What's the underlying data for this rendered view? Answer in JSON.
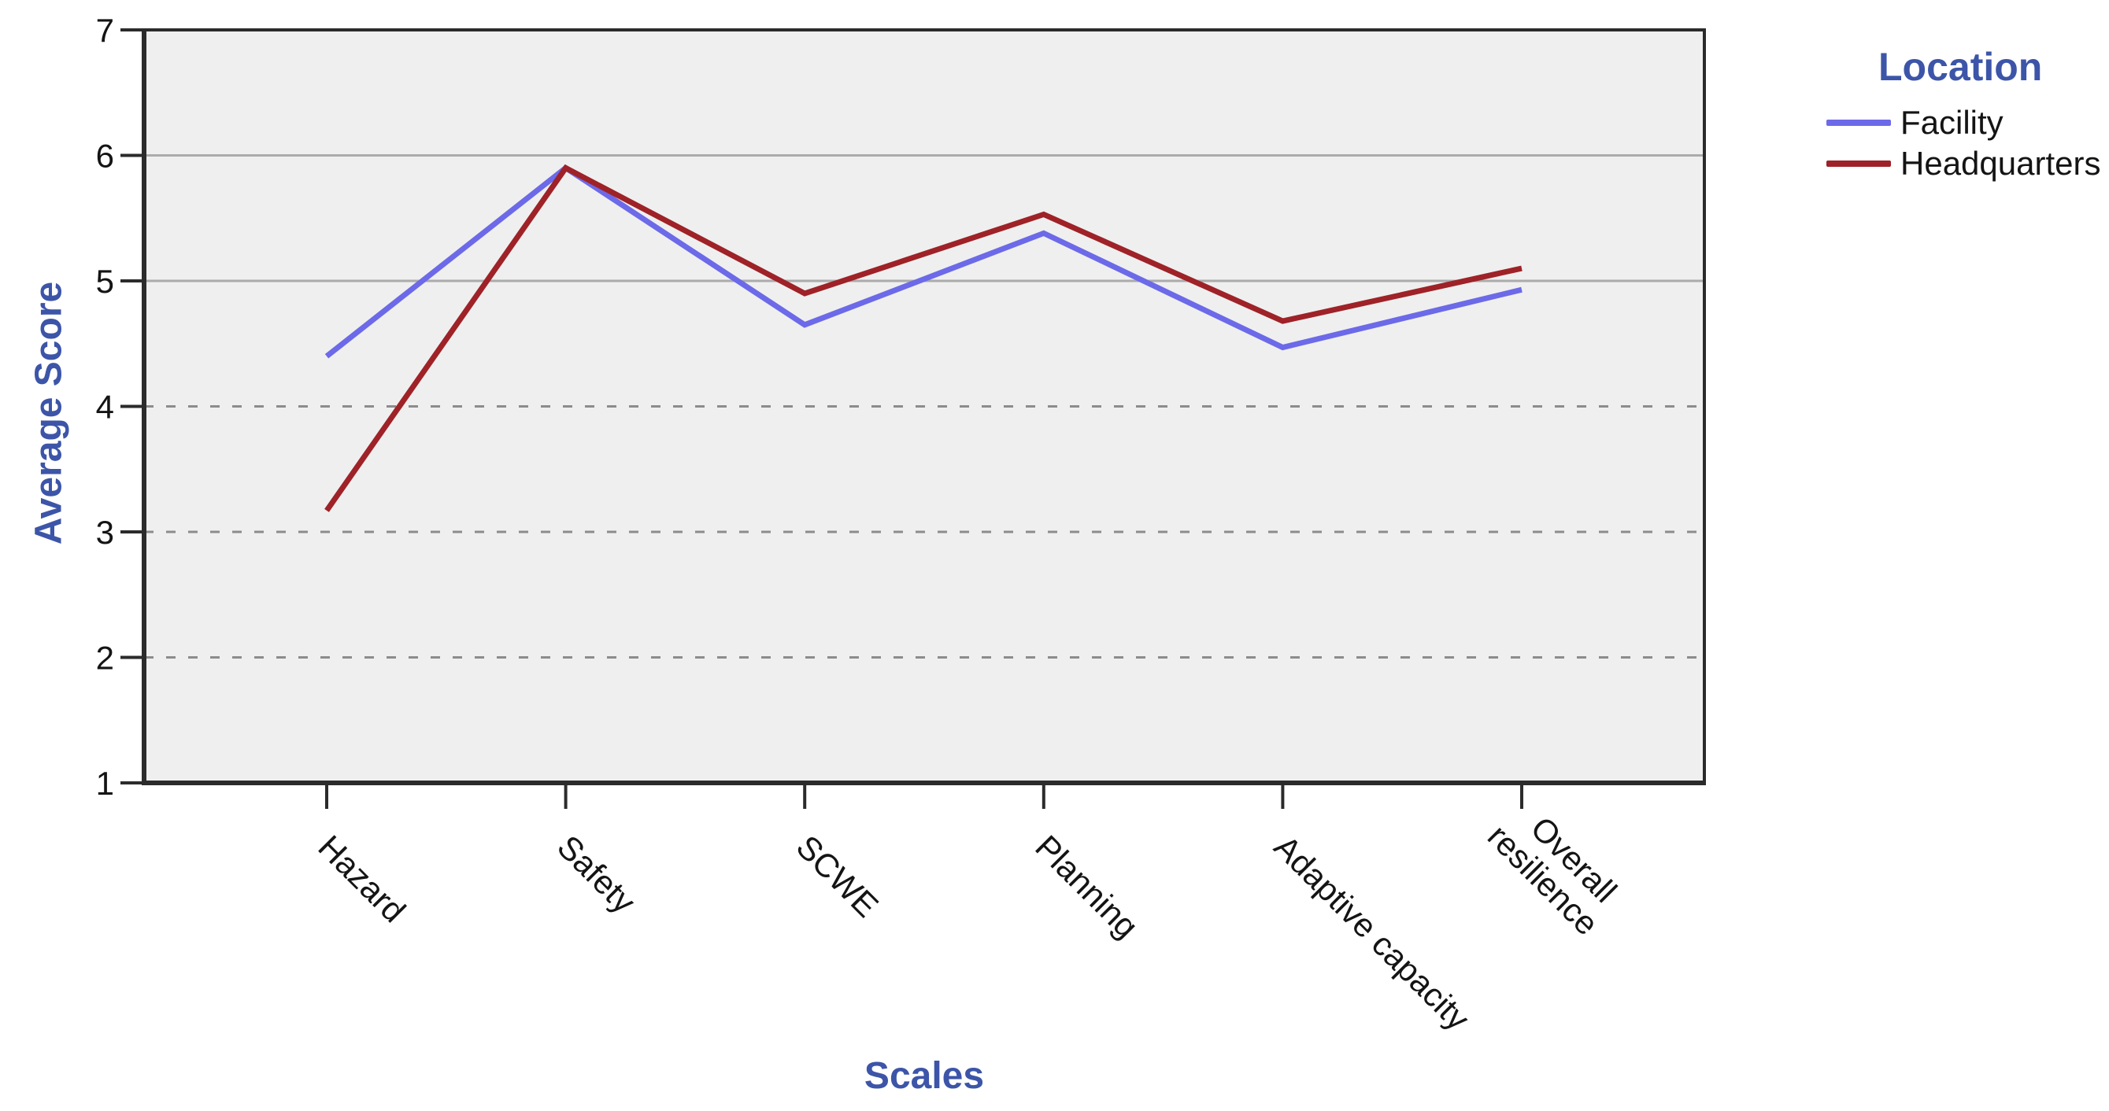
{
  "accent_color": "#3C55A8",
  "plot": {
    "background_color": "#EFEFEF",
    "frame_color": "#2B2B2B",
    "solid_grid_color": "#ABABAB",
    "dashed_grid_color": "#8C8C8C",
    "tick_label_color": "#141414"
  },
  "legend": {
    "title": "Location",
    "items": [
      {
        "label": "Facility"
      },
      {
        "label": "Headquarters"
      }
    ]
  },
  "chart_data": {
    "type": "line",
    "xlabel": "Scales",
    "ylabel": "Average Score",
    "categories": [
      "Hazard",
      "Safety",
      "SCWE",
      "Planning",
      "Adaptive capacity",
      "Overall resilience"
    ],
    "xticklabels_display": [
      "Hazard",
      "Safety",
      "SCWE",
      "Planning",
      "Adaptive capacity",
      "Overall\nresilience"
    ],
    "series": [
      {
        "name": "Facility",
        "color": "#6C6AE8",
        "values": [
          4.4,
          5.9,
          4.65,
          5.38,
          4.47,
          4.93
        ]
      },
      {
        "name": "Headquarters",
        "color": "#9E2227",
        "values": [
          3.17,
          5.9,
          4.9,
          5.53,
          4.68,
          5.1
        ]
      }
    ],
    "ylim": [
      1,
      7
    ],
    "yticks": [
      1,
      2,
      3,
      4,
      5,
      6,
      7
    ],
    "grid": {
      "y_solid": [
        5,
        6
      ],
      "y_dashed": [
        2,
        3,
        4
      ]
    },
    "legend_position": "right-top",
    "markers": false
  }
}
